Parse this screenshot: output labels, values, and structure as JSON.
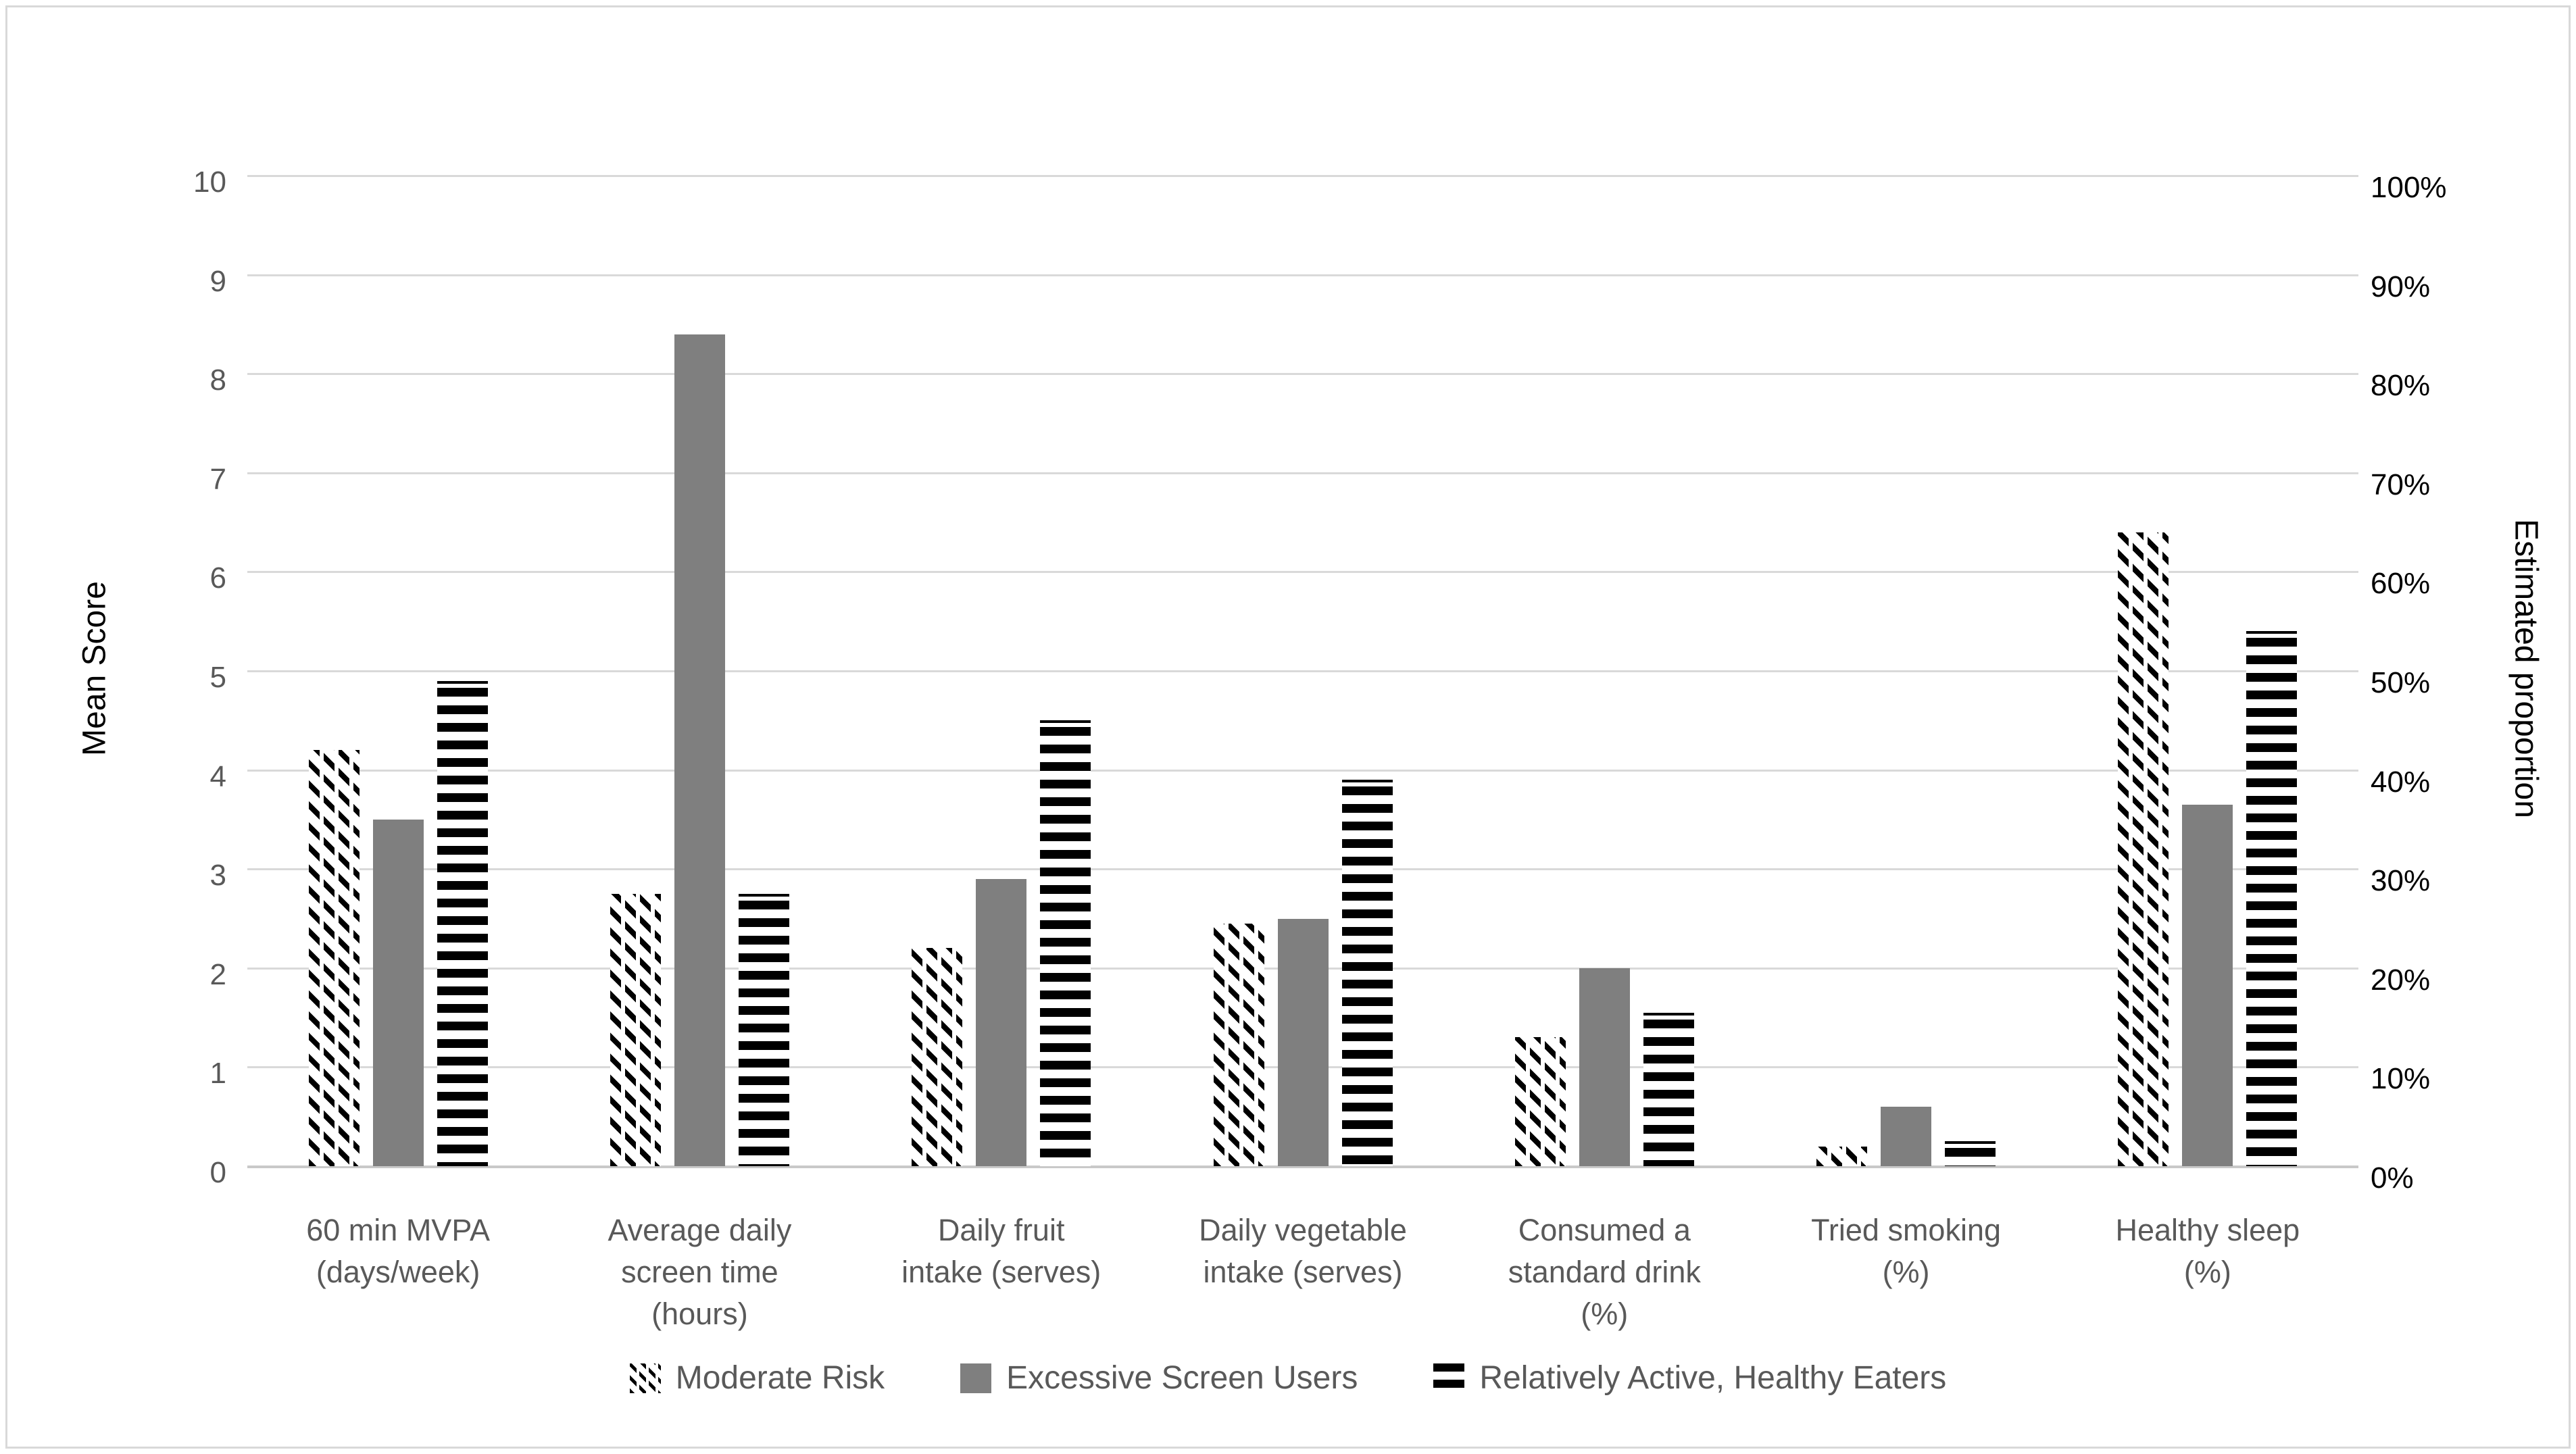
{
  "chart_data": {
    "type": "bar",
    "title": "",
    "categories": [
      "60 min MVPA\n(days/week)",
      "Average daily\nscreen time\n(hours)",
      "Daily fruit\nintake (serves)",
      "Daily vegetable\nintake (serves)",
      "Consumed a\nstandard drink\n(%)",
      "Tried smoking\n(%)",
      "Healthy sleep\n(%)"
    ],
    "series": [
      {
        "name": "Moderate Risk",
        "pattern": "diagonal-hatch",
        "values": [
          4.2,
          2.75,
          2.2,
          2.45,
          1.3,
          0.2,
          6.4
        ]
      },
      {
        "name": "Excessive Screen Users",
        "pattern": "solid",
        "values": [
          3.5,
          8.4,
          2.9,
          2.5,
          2.0,
          0.6,
          3.65
        ]
      },
      {
        "name": "Relatively Active, Healthy Eaters",
        "pattern": "horizontal-stripes",
        "values": [
          4.9,
          2.75,
          4.5,
          3.9,
          1.55,
          0.25,
          5.4
        ]
      }
    ],
    "left_axis": {
      "title": "Mean Score",
      "min": 0,
      "max": 10,
      "ticks": [
        10,
        9,
        8,
        7,
        6,
        5,
        4,
        3,
        2,
        1,
        0
      ]
    },
    "right_axis": {
      "title": "Estimated proportion",
      "ticks": [
        "100%",
        "90%",
        "80%",
        "70%",
        "60%",
        "50%",
        "40%",
        "30%",
        "20%",
        "10%",
        "0%"
      ]
    },
    "grid": true,
    "legend_position": "bottom"
  },
  "colors": {
    "bar_gray": "#7f7f7f",
    "pattern_black": "#000000",
    "gridline": "#d9d9d9",
    "left_tick_text": "#595959",
    "right_tick_text": "#000000",
    "category_text": "#595959",
    "legend_text": "#595959",
    "axis_title_text": "#000000",
    "background": "#ffffff",
    "border": "#d9d9d9"
  }
}
